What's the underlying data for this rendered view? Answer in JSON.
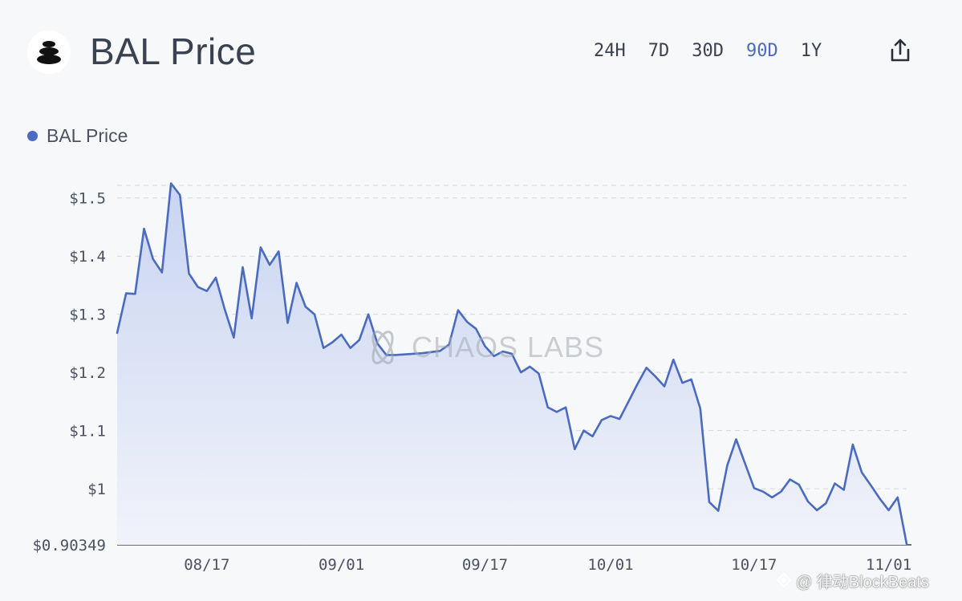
{
  "header": {
    "title": "BAL Price",
    "logo_icon": "balancer-logo-icon",
    "range_tabs": [
      "24H",
      "7D",
      "30D",
      "90D",
      "1Y"
    ],
    "active_range": "90D",
    "share_icon": "share-icon"
  },
  "watermark": {
    "text": "CHAOS LABS",
    "icon": "chaos-labs-logo-icon"
  },
  "credit": {
    "text": "@ 律动BlockBeats",
    "icon": "blockbeats-icon"
  },
  "colors": {
    "line": "#4a6bbf",
    "fill_top": "#c8d4f1",
    "fill_bottom": "#f1f3fa",
    "grid": "#d3d6dc",
    "active_tab": "#4a6bbf"
  },
  "chart_data": {
    "type": "area",
    "title": "",
    "legend": [
      "BAL Price"
    ],
    "legend_position": "top-left",
    "grid": true,
    "x_ticks": [
      "08/17",
      "09/01",
      "09/17",
      "10/01",
      "10/17",
      "11/01"
    ],
    "y_ticks": [
      "$0.90349",
      "$1",
      "$1.1",
      "$1.2",
      "$1.3",
      "$1.4",
      "$1.5"
    ],
    "ylim": [
      0.90349,
      1.53
    ],
    "xlim": [
      "2024-08-07",
      "2024-11-03"
    ],
    "series": [
      {
        "name": "BAL Price",
        "x": [
          "2024-08-07",
          "2024-08-08",
          "2024-08-09",
          "2024-08-10",
          "2024-08-11",
          "2024-08-12",
          "2024-08-13",
          "2024-08-14",
          "2024-08-15",
          "2024-08-16",
          "2024-08-17",
          "2024-08-18",
          "2024-08-19",
          "2024-08-20",
          "2024-08-21",
          "2024-08-22",
          "2024-08-23",
          "2024-08-24",
          "2024-08-25",
          "2024-08-26",
          "2024-08-27",
          "2024-08-28",
          "2024-08-29",
          "2024-08-30",
          "2024-08-31",
          "2024-09-01",
          "2024-09-02",
          "2024-09-03",
          "2024-09-04",
          "2024-09-05",
          "2024-09-06",
          "2024-09-07",
          "2024-09-08",
          "2024-09-09",
          "2024-09-10",
          "2024-09-11",
          "2024-09-12",
          "2024-09-13",
          "2024-09-14",
          "2024-09-15",
          "2024-09-16",
          "2024-09-17",
          "2024-09-18",
          "2024-09-19",
          "2024-09-20",
          "2024-09-21",
          "2024-09-22",
          "2024-09-23",
          "2024-09-24",
          "2024-09-25",
          "2024-09-26",
          "2024-09-27",
          "2024-09-28",
          "2024-09-29",
          "2024-09-30",
          "2024-10-01",
          "2024-10-02",
          "2024-10-03",
          "2024-10-04",
          "2024-10-05",
          "2024-10-06",
          "2024-10-07",
          "2024-10-08",
          "2024-10-09",
          "2024-10-10",
          "2024-10-11",
          "2024-10-12",
          "2024-10-13",
          "2024-10-14",
          "2024-10-15",
          "2024-10-16",
          "2024-10-17",
          "2024-10-18",
          "2024-10-19",
          "2024-10-20",
          "2024-10-21",
          "2024-10-22",
          "2024-10-23",
          "2024-10-24",
          "2024-10-25",
          "2024-10-26",
          "2024-10-27",
          "2024-10-28",
          "2024-10-29",
          "2024-10-30",
          "2024-10-31",
          "2024-11-01",
          "2024-11-02",
          "2024-11-03"
        ],
        "values": [
          1.268,
          1.336,
          1.335,
          1.447,
          1.395,
          1.372,
          1.525,
          1.505,
          1.37,
          1.347,
          1.34,
          1.363,
          1.308,
          1.26,
          1.381,
          1.293,
          1.415,
          1.385,
          1.408,
          1.285,
          1.354,
          1.313,
          1.3,
          1.242,
          1.252,
          1.265,
          1.242,
          1.256,
          1.3,
          1.25,
          1.23,
          1.23,
          1.231,
          1.232,
          1.233,
          1.235,
          1.237,
          1.248,
          1.307,
          1.287,
          1.275,
          1.245,
          1.228,
          1.236,
          1.232,
          1.2,
          1.21,
          1.198,
          1.14,
          1.132,
          1.14,
          1.068,
          1.1,
          1.09,
          1.118,
          1.125,
          1.12,
          1.15,
          1.18,
          1.208,
          1.193,
          1.176,
          1.222,
          1.182,
          1.188,
          1.138,
          0.977,
          0.962,
          1.04,
          1.085,
          1.043,
          1.001,
          0.995,
          0.985,
          0.995,
          1.016,
          1.007,
          0.978,
          0.963,
          0.975,
          1.009,
          0.998,
          1.076,
          1.028,
          1.006,
          0.983,
          0.963,
          0.985,
          0.905
        ]
      }
    ]
  }
}
